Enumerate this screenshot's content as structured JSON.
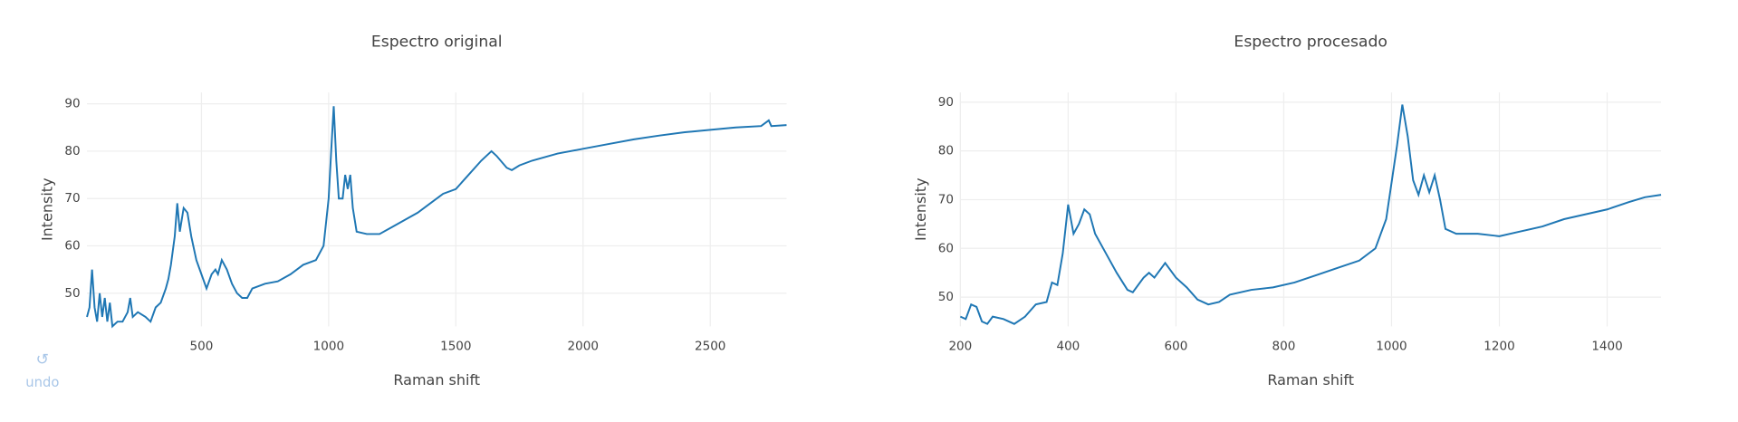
{
  "chart_data": [
    {
      "type": "line",
      "title": "Espectro original",
      "x_label": "Raman shift",
      "y_label": "Intensity",
      "color": "#1f77b4",
      "grid": true,
      "xlim": [
        50,
        2800
      ],
      "ylim": [
        43,
        92.4
      ],
      "xticks": [
        500,
        1000,
        1500,
        2000,
        2500
      ],
      "yticks": [
        50,
        60,
        70,
        80,
        90
      ],
      "x": [
        50,
        60,
        70,
        80,
        90,
        100,
        110,
        120,
        130,
        140,
        150,
        170,
        190,
        210,
        220,
        230,
        250,
        280,
        300,
        320,
        340,
        360,
        370,
        380,
        395,
        405,
        415,
        430,
        445,
        460,
        480,
        500,
        520,
        540,
        555,
        565,
        580,
        600,
        620,
        640,
        660,
        680,
        700,
        750,
        800,
        850,
        900,
        950,
        980,
        1000,
        1010,
        1020,
        1030,
        1040,
        1055,
        1065,
        1075,
        1085,
        1095,
        1110,
        1150,
        1200,
        1250,
        1300,
        1350,
        1400,
        1450,
        1500,
        1550,
        1600,
        1640,
        1660,
        1700,
        1720,
        1750,
        1800,
        1900,
        2000,
        2100,
        2200,
        2300,
        2400,
        2500,
        2600,
        2700,
        2730,
        2740,
        2800
      ],
      "values": [
        45,
        47,
        55,
        47,
        44,
        50,
        45,
        49,
        44,
        48,
        43,
        44,
        44,
        46,
        49,
        45,
        46,
        45,
        44,
        47,
        48,
        51,
        53,
        56,
        62,
        69,
        63,
        68,
        67,
        62,
        57,
        54,
        51,
        54,
        55,
        54,
        57,
        55,
        52,
        50,
        49,
        49,
        51,
        52,
        52.5,
        54,
        56,
        57,
        60,
        70,
        80,
        89.5,
        78,
        70,
        70,
        75,
        72,
        75,
        68,
        63,
        62.5,
        62.5,
        64,
        65.5,
        67,
        69,
        71,
        72,
        75,
        78,
        80,
        79,
        76.5,
        76,
        77,
        78,
        79.5,
        80.5,
        81.5,
        82.5,
        83.3,
        84,
        84.5,
        85,
        85.3,
        86.5,
        85.3,
        85.5
      ]
    },
    {
      "type": "line",
      "title": "Espectro procesado",
      "x_label": "Raman shift",
      "y_label": "Intensity",
      "color": "#1f77b4",
      "grid": true,
      "xlim": [
        200,
        1500
      ],
      "ylim": [
        44,
        92
      ],
      "xticks": [
        200,
        400,
        600,
        800,
        1000,
        1200,
        1400
      ],
      "yticks": [
        50,
        60,
        70,
        80,
        90
      ],
      "x": [
        200,
        210,
        220,
        230,
        240,
        250,
        260,
        280,
        300,
        320,
        340,
        360,
        370,
        380,
        390,
        400,
        410,
        420,
        430,
        440,
        450,
        470,
        490,
        510,
        520,
        540,
        550,
        560,
        580,
        600,
        620,
        640,
        660,
        680,
        700,
        740,
        780,
        820,
        860,
        900,
        940,
        970,
        990,
        1010,
        1020,
        1030,
        1040,
        1050,
        1060,
        1070,
        1080,
        1090,
        1100,
        1120,
        1160,
        1200,
        1240,
        1280,
        1320,
        1360,
        1400,
        1440,
        1470,
        1500
      ],
      "values": [
        46,
        45.5,
        48.5,
        48,
        45,
        44.5,
        46,
        45.5,
        44.5,
        46,
        48.5,
        49,
        53,
        52.5,
        59,
        69,
        63,
        65,
        68,
        67,
        63,
        59,
        55,
        51.5,
        51,
        54,
        55,
        54,
        57,
        54,
        52,
        49.5,
        48.5,
        49,
        50.5,
        51.5,
        52,
        53,
        54.5,
        56,
        57.5,
        60,
        66,
        81,
        89.5,
        83,
        74,
        71,
        75,
        71.5,
        75,
        70,
        64,
        63,
        63,
        62.5,
        63.5,
        64.5,
        66,
        67,
        68,
        69.5,
        70.5,
        71
      ]
    }
  ],
  "undo_label": "undo"
}
